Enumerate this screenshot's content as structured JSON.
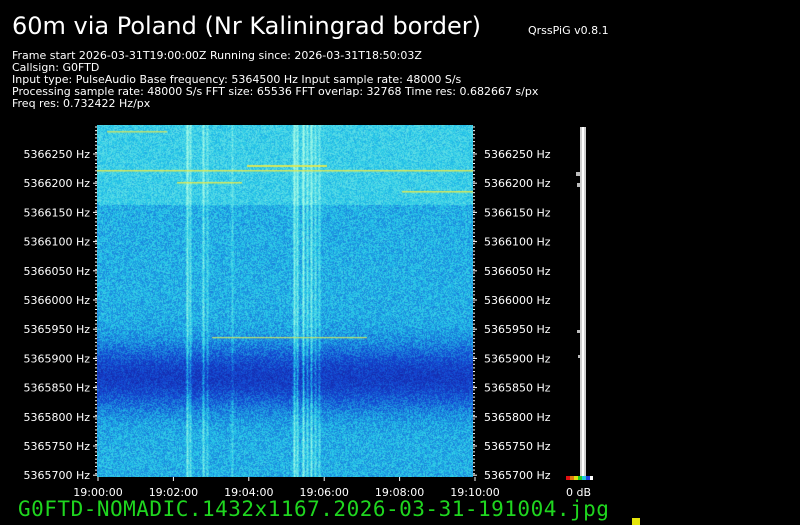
{
  "header": {
    "title": "60m via Poland (Nr Kaliningrad border)",
    "version": "QrssPiG v0.8.1"
  },
  "info_lines": [
    "Frame start 2026-03-31T19:00:00Z Running since: 2026-03-31T18:50:03Z",
    "Callsign: G0FTD",
    "Input type: PulseAudio Base frequency: 5364500 Hz Input sample rate: 48000 S/s",
    "Processing sample rate: 48000 S/s FFT size: 65536 FFT overlap: 32768 Time res: 0.682667 s/px",
    "Freq res: 0.732422 Hz/px"
  ],
  "footer": {
    "filename": "G0FTD-NOMADIC.1432x1167.2026-03-31-191004.jpg"
  },
  "chart_data": {
    "type": "heatmap",
    "title": "60m via Poland (Nr Kaliningrad border)",
    "xlabel": "",
    "ylabel": "",
    "x_ticks": [
      "19:00:00",
      "19:02:00",
      "19:04:00",
      "19:06:00",
      "19:08:00",
      "19:10:00"
    ],
    "x_range": [
      "19:00:00",
      "19:10:00"
    ],
    "y_ticks_left": [
      "5366250 Hz",
      "5366200 Hz",
      "5366150 Hz",
      "5366100 Hz",
      "5366050 Hz",
      "5366000 Hz",
      "5365950 Hz",
      "5365900 Hz",
      "5365850 Hz",
      "5365800 Hz",
      "5365750 Hz",
      "5365700 Hz"
    ],
    "y_ticks_right": [
      "5366250 Hz",
      "5366200 Hz",
      "5366150 Hz",
      "5366100 Hz",
      "5366050 Hz",
      "5366000 Hz",
      "5365950 Hz",
      "5365900 Hz",
      "5365850 Hz",
      "5365800 Hz",
      "5365750 Hz",
      "5365700 Hz"
    ],
    "y_range_hz": [
      5365700,
      5366300
    ],
    "colorbar_label": "0 dB",
    "colors": {
      "background": "#000000",
      "low": "#1a3fd0",
      "mid": "#1e8de0",
      "high": "#38c8e8",
      "signal": "#d7e85a"
    }
  }
}
